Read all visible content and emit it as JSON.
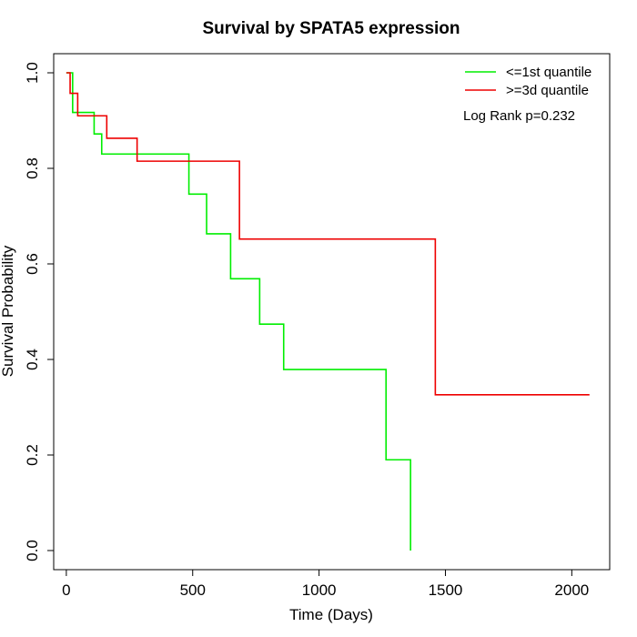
{
  "chart_data": {
    "type": "line",
    "title": "Survival by SPATA5 expression",
    "xlabel": "Time (Days)",
    "ylabel": "Survival Probability",
    "xlim": [
      -50,
      2150
    ],
    "ylim": [
      -0.04,
      1.04
    ],
    "x_ticks": [
      0,
      500,
      1000,
      1500,
      2000
    ],
    "y_ticks": [
      0.0,
      0.2,
      0.4,
      0.6,
      0.8,
      1.0
    ],
    "x_tick_labels": [
      "0",
      "500",
      "1000",
      "1500",
      "2000"
    ],
    "y_tick_labels": [
      "0.0",
      "0.2",
      "0.4",
      "0.6",
      "0.8",
      "1.0"
    ],
    "grid": false,
    "legend_position": "top-right",
    "annotation": "Log Rank p=0.232",
    "series": [
      {
        "name": "<=1st quantile",
        "color": "#00ee00",
        "step": true,
        "points": [
          [
            0,
            1.0
          ],
          [
            25,
            1.0
          ],
          [
            25,
            0.917
          ],
          [
            110,
            0.917
          ],
          [
            110,
            0.872
          ],
          [
            140,
            0.872
          ],
          [
            140,
            0.83
          ],
          [
            485,
            0.83
          ],
          [
            485,
            0.746
          ],
          [
            555,
            0.746
          ],
          [
            555,
            0.663
          ],
          [
            650,
            0.663
          ],
          [
            650,
            0.569
          ],
          [
            765,
            0.569
          ],
          [
            765,
            0.474
          ],
          [
            860,
            0.474
          ],
          [
            860,
            0.379
          ],
          [
            1265,
            0.379
          ],
          [
            1265,
            0.19
          ],
          [
            1362,
            0.19
          ],
          [
            1362,
            0.0
          ]
        ]
      },
      {
        "name": ">=3d quantile",
        "color": "#ee0000",
        "step": true,
        "points": [
          [
            0,
            1.0
          ],
          [
            15,
            1.0
          ],
          [
            15,
            0.957
          ],
          [
            45,
            0.957
          ],
          [
            45,
            0.91
          ],
          [
            160,
            0.91
          ],
          [
            160,
            0.863
          ],
          [
            280,
            0.863
          ],
          [
            280,
            0.815
          ],
          [
            685,
            0.815
          ],
          [
            685,
            0.652
          ],
          [
            1460,
            0.652
          ],
          [
            1460,
            0.326
          ],
          [
            2070,
            0.326
          ]
        ]
      }
    ]
  }
}
